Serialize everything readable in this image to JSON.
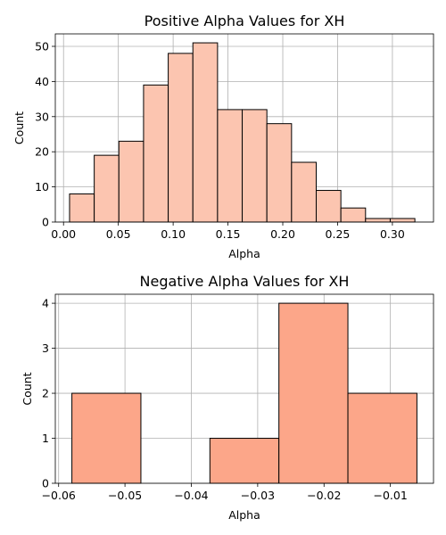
{
  "chart_data": [
    {
      "type": "bar",
      "title": "Positive Alpha Values for XH",
      "xlabel": "Alpha",
      "ylabel": "Count",
      "grid": true,
      "bar_color": "#fcc5b0",
      "edge_color": "#000000",
      "grid_color": "#b0b0b0",
      "xlim": [
        -0.0075,
        0.3375
      ],
      "ylim": [
        0,
        53.55
      ],
      "xticks": [
        0.0,
        0.05,
        0.1,
        0.15,
        0.2,
        0.25,
        0.3
      ],
      "xtick_labels": [
        "0.00",
        "0.05",
        "0.10",
        "0.15",
        "0.20",
        "0.25",
        "0.30"
      ],
      "yticks": [
        0,
        10,
        20,
        30,
        40,
        50
      ],
      "ytick_labels": [
        "0",
        "10",
        "20",
        "30",
        "40",
        "50"
      ],
      "bins": [
        {
          "x0": 0.0055,
          "x1": 0.028,
          "count": 8
        },
        {
          "x0": 0.028,
          "x1": 0.0505,
          "count": 19
        },
        {
          "x0": 0.0505,
          "x1": 0.073,
          "count": 23
        },
        {
          "x0": 0.073,
          "x1": 0.0955,
          "count": 39
        },
        {
          "x0": 0.0955,
          "x1": 0.118,
          "count": 48
        },
        {
          "x0": 0.118,
          "x1": 0.1405,
          "count": 51
        },
        {
          "x0": 0.1405,
          "x1": 0.163,
          "count": 32
        },
        {
          "x0": 0.163,
          "x1": 0.1855,
          "count": 32
        },
        {
          "x0": 0.1855,
          "x1": 0.208,
          "count": 28
        },
        {
          "x0": 0.208,
          "x1": 0.2305,
          "count": 17
        },
        {
          "x0": 0.2305,
          "x1": 0.253,
          "count": 9
        },
        {
          "x0": 0.253,
          "x1": 0.2755,
          "count": 4
        },
        {
          "x0": 0.2755,
          "x1": 0.298,
          "count": 1
        },
        {
          "x0": 0.298,
          "x1": 0.3205,
          "count": 1
        }
      ]
    },
    {
      "type": "bar",
      "title": "Negative Alpha Values for XH",
      "xlabel": "Alpha",
      "ylabel": "Count",
      "grid": true,
      "bar_color": "#fca689",
      "edge_color": "#000000",
      "grid_color": "#b0b0b0",
      "xlim": [
        -0.0605,
        -0.0035
      ],
      "ylim": [
        0,
        4.2
      ],
      "xticks": [
        -0.06,
        -0.05,
        -0.04,
        -0.03,
        -0.02,
        -0.01
      ],
      "xtick_labels": [
        "−0.06",
        "−0.05",
        "−0.04",
        "−0.03",
        "−0.02",
        "−0.01"
      ],
      "yticks": [
        0,
        1,
        2,
        3,
        4
      ],
      "ytick_labels": [
        "0",
        "1",
        "2",
        "3",
        "4"
      ],
      "bins": [
        {
          "x0": -0.058,
          "x1": -0.0476,
          "count": 2
        },
        {
          "x0": -0.0476,
          "x1": -0.0372,
          "count": 0
        },
        {
          "x0": -0.0372,
          "x1": -0.0268,
          "count": 1
        },
        {
          "x0": -0.0268,
          "x1": -0.0164,
          "count": 4
        },
        {
          "x0": -0.0164,
          "x1": -0.006,
          "count": 2
        }
      ]
    }
  ]
}
